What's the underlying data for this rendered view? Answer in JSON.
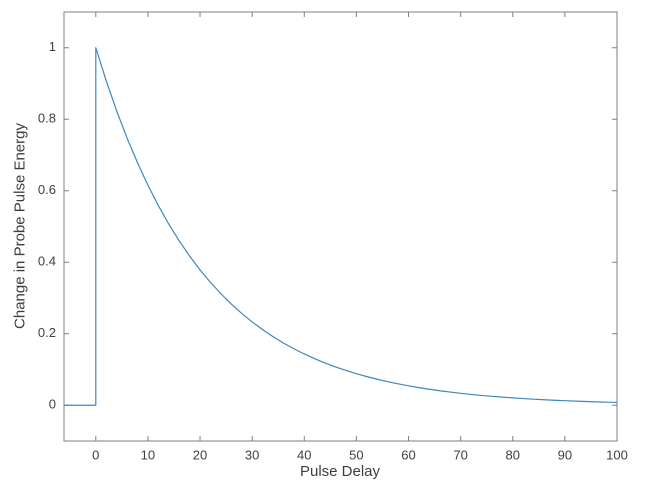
{
  "colors": {
    "line": "#3D87BF",
    "axis": "#7F7F7F",
    "tick_text": "#404040",
    "label_text": "#3D3D3D",
    "background": "#FFFFFF"
  },
  "chart_data": {
    "type": "line",
    "title": "",
    "xlabel": "Pulse Delay",
    "ylabel": "Change in Probe Pulse Energy",
    "xlim": [
      -6.1,
      100
    ],
    "ylim": [
      -0.1,
      1.1
    ],
    "x_ticks": [
      0,
      10,
      20,
      30,
      40,
      50,
      60,
      70,
      80,
      90,
      100
    ],
    "x_tick_labels": [
      "0",
      "10",
      "20",
      "30",
      "40",
      "50",
      "60",
      "70",
      "80",
      "90",
      "100"
    ],
    "y_ticks": [
      0,
      0.2,
      0.4,
      0.6,
      0.8,
      1
    ],
    "y_tick_labels": [
      "0",
      "0.2",
      "0.4",
      "0.6",
      "0.8",
      "1"
    ],
    "grid": false,
    "legend": null,
    "box": true,
    "tick_direction": "in",
    "description": "Signal is 0 for negative delay, steps to 1 at delay 0, then decays exponentially with time constant ~20.6",
    "series": [
      {
        "name": "change-in-probe-pulse-energy",
        "x": [
          -6.1,
          0,
          0,
          2,
          4,
          6,
          8,
          10,
          12,
          14,
          16,
          18,
          20,
          22,
          24,
          26,
          28,
          30,
          32,
          34,
          36,
          38,
          40,
          42,
          44,
          46,
          48,
          50,
          52,
          54,
          56,
          58,
          60,
          62,
          64,
          66,
          68,
          70,
          72,
          74,
          76,
          78,
          80,
          82,
          84,
          86,
          88,
          90,
          92,
          94,
          96,
          98,
          100
        ],
        "y": [
          0,
          0,
          1,
          0.9075,
          0.8235,
          0.7473,
          0.6782,
          0.6154,
          0.5585,
          0.5068,
          0.4599,
          0.4174,
          0.3787,
          0.3437,
          0.3119,
          0.283,
          0.2568,
          0.2331,
          0.2115,
          0.1919,
          0.1742,
          0.1581,
          0.1434,
          0.1302,
          0.1181,
          0.1072,
          0.0973,
          0.0883,
          0.0801,
          0.0727,
          0.066,
          0.0599,
          0.0543,
          0.0493,
          0.0447,
          0.0406,
          0.0368,
          0.0334,
          0.0303,
          0.0275,
          0.025,
          0.0227,
          0.0206,
          0.0187,
          0.0169,
          0.0154,
          0.0139,
          0.0127,
          0.0115,
          0.0104,
          0.0095,
          0.0086,
          0.0078
        ]
      }
    ]
  }
}
